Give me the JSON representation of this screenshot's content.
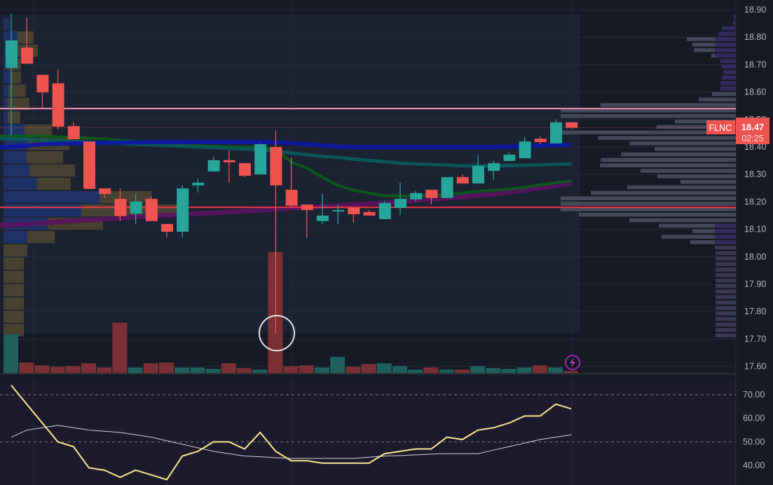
{
  "chart_data": {
    "type": "candlestick",
    "symbol": "FLNC",
    "last_price": "18.47",
    "countdown": "02:25",
    "price_axis": {
      "ylim": [
        17.57,
        18.93
      ],
      "ticks": [
        "18.90",
        "18.80",
        "18.70",
        "18.60",
        "18.50",
        "18.40",
        "18.30",
        "18.20",
        "18.10",
        "18.00",
        "17.90",
        "17.80",
        "17.70",
        "17.60"
      ]
    },
    "rsi_axis": {
      "ylim": [
        35,
        78
      ],
      "ticks": [
        "70.00",
        "60.00",
        "50.00",
        "40.00"
      ],
      "bands": [
        70,
        50
      ]
    },
    "levels": [
      {
        "price": 18.54,
        "color": "#f48fb1"
      },
      {
        "price": 18.18,
        "color": "#f23645"
      }
    ],
    "colors": {
      "up": "#26a69a",
      "down": "#ef5350",
      "ma_blue": "#0d17a8",
      "ma_teal": "#0b5c5c",
      "ma_green": "#0b5e1a",
      "ma_purple": "#5a1460",
      "rsi": "#f7e98e",
      "rsi_ma": "#d1d4dc"
    },
    "candles": [
      [
        18.688,
        18.885,
        18.443,
        18.788
      ],
      [
        18.762,
        18.872,
        18.701,
        18.704
      ],
      [
        18.663,
        18.663,
        18.54,
        18.599
      ],
      [
        18.632,
        18.683,
        18.464,
        18.474
      ],
      [
        18.476,
        18.49,
        18.43,
        18.428
      ],
      [
        18.42,
        18.42,
        18.247,
        18.247
      ],
      [
        18.249,
        18.249,
        18.214,
        18.229
      ],
      [
        18.211,
        18.249,
        18.13,
        18.148
      ],
      [
        18.157,
        18.23,
        18.12,
        18.201
      ],
      [
        18.211,
        18.22,
        18.13,
        18.13
      ],
      [
        18.119,
        18.119,
        18.07,
        18.091
      ],
      [
        18.091,
        18.26,
        18.07,
        18.249
      ],
      [
        18.26,
        18.285,
        18.234,
        18.27
      ],
      [
        18.311,
        18.364,
        18.31,
        18.352
      ],
      [
        18.352,
        18.388,
        18.27,
        18.344
      ],
      [
        18.341,
        18.341,
        18.29,
        18.295
      ],
      [
        18.3,
        18.413,
        18.3,
        18.41
      ],
      [
        18.4,
        18.46,
        17.72,
        18.26
      ],
      [
        18.244,
        18.362,
        18.18,
        18.186
      ],
      [
        18.19,
        18.19,
        18.07,
        18.17
      ],
      [
        18.13,
        18.23,
        18.12,
        18.15
      ],
      [
        18.165,
        18.19,
        18.12,
        18.17
      ],
      [
        18.178,
        18.18,
        18.124,
        18.155
      ],
      [
        18.163,
        18.17,
        18.15,
        18.15
      ],
      [
        18.137,
        18.203,
        18.137,
        18.196
      ],
      [
        18.178,
        18.27,
        18.152,
        18.211
      ],
      [
        18.209,
        18.24,
        18.2,
        18.232
      ],
      [
        18.244,
        18.244,
        18.19,
        18.214
      ],
      [
        18.214,
        18.29,
        18.214,
        18.29
      ],
      [
        18.29,
        18.3,
        18.267,
        18.267
      ],
      [
        18.267,
        18.37,
        18.267,
        18.331
      ],
      [
        18.313,
        18.35,
        18.28,
        18.341
      ],
      [
        18.349,
        18.38,
        18.349,
        18.372
      ],
      [
        18.359,
        18.436,
        18.359,
        18.42
      ],
      [
        18.43,
        18.44,
        18.41,
        18.418
      ],
      [
        18.413,
        18.5,
        18.413,
        18.49
      ],
      [
        18.49,
        18.49,
        18.467,
        18.47
      ]
    ],
    "volume": [
      55,
      15,
      11,
      9,
      10,
      14,
      8,
      72,
      8,
      14,
      15,
      8,
      8,
      6,
      14,
      7,
      5,
      173,
      10,
      11,
      8,
      23,
      9,
      13,
      14,
      10,
      5,
      8,
      5,
      5,
      10,
      7,
      6,
      8,
      11,
      8,
      3
    ],
    "ma_blue": [
      18.4,
      18.405,
      18.41,
      18.412,
      18.413,
      18.414,
      18.415,
      18.416,
      18.417,
      18.418,
      18.418,
      18.418,
      18.418,
      18.418,
      18.418,
      18.418,
      18.418,
      18.417,
      18.414,
      18.41,
      18.405,
      18.402,
      18.4,
      18.4,
      18.4,
      18.4,
      18.4,
      18.4,
      18.4,
      18.4,
      18.4,
      18.4,
      18.401,
      18.403,
      18.405,
      18.407,
      18.408
    ],
    "ma_teal": [
      18.43,
      18.428,
      18.425,
      18.423,
      18.42,
      18.418,
      18.415,
      18.413,
      18.41,
      18.408,
      18.405,
      18.403,
      18.4,
      18.398,
      18.395,
      18.393,
      18.39,
      18.385,
      18.378,
      18.372,
      18.366,
      18.362,
      18.356,
      18.351,
      18.346,
      18.341,
      18.338,
      18.336,
      18.334,
      18.331,
      18.331,
      18.331,
      18.332,
      18.333,
      18.335,
      18.337,
      18.338
    ],
    "ma_green": [
      18.44,
      18.44,
      18.44,
      18.437,
      18.435,
      18.432,
      18.43,
      18.425,
      18.42,
      18.416,
      18.412,
      18.408,
      18.405,
      18.403,
      18.401,
      18.4,
      18.4,
      18.39,
      18.345,
      18.323,
      18.29,
      18.26,
      18.243,
      18.232,
      18.222,
      18.221,
      18.221,
      18.222,
      18.226,
      18.232,
      18.238,
      18.242,
      18.247,
      18.253,
      18.262,
      18.27,
      18.277
    ],
    "ma_purple": [
      18.115,
      18.119,
      18.123,
      18.127,
      18.131,
      18.134,
      18.137,
      18.141,
      18.145,
      18.148,
      18.151,
      18.154,
      18.157,
      18.16,
      18.163,
      18.166,
      18.17,
      18.173,
      18.176,
      18.18,
      18.183,
      18.186,
      18.19,
      18.193,
      18.196,
      18.2,
      18.205,
      18.209,
      18.214,
      18.218,
      18.223,
      18.227,
      18.235,
      18.243,
      18.251,
      18.259,
      18.267
    ],
    "rsi": [
      74,
      66,
      58,
      50,
      48,
      39,
      38,
      35,
      38,
      36,
      34,
      44,
      46,
      50,
      50,
      47,
      54,
      46,
      42,
      42,
      41,
      41,
      41,
      41,
      45,
      46,
      47,
      47,
      52,
      51,
      55,
      56,
      58,
      61,
      61,
      66,
      64
    ],
    "rsi_ma": [
      52,
      55,
      56,
      57,
      56,
      55,
      54.5,
      54,
      53,
      52,
      50.5,
      49,
      47.5,
      46,
      45,
      44,
      43.7,
      43.3,
      43,
      43,
      43,
      43,
      43,
      43.5,
      44,
      44.2,
      44.5,
      44.8,
      45,
      45,
      45,
      46.5,
      48,
      49.5,
      51,
      52,
      53
    ],
    "volume_profile_right": {
      "price_top": 18.88,
      "step": 0.02,
      "values": [
        3,
        4,
        20,
        25,
        70,
        62,
        60,
        35,
        22,
        20,
        18,
        20,
        22,
        22,
        34,
        53,
        193,
        250,
        250,
        87,
        113,
        250,
        197,
        152,
        116,
        164,
        193,
        194,
        136,
        112,
        79,
        155,
        207,
        250,
        250,
        250,
        224,
        152,
        110,
        62,
        106,
        65,
        30,
        29,
        29,
        29,
        29,
        29,
        29,
        29,
        29,
        29,
        29,
        29,
        29,
        29,
        29,
        29,
        29
      ]
    },
    "volume_profile_left": {
      "price_top": 18.87,
      "step": 0.0485,
      "up": [
        8,
        20,
        5,
        5,
        10,
        7,
        6,
        6,
        30,
        35,
        33,
        37,
        48,
        137,
        111,
        63,
        34,
        0,
        0,
        0,
        0,
        0,
        0,
        0
      ],
      "down": [
        0,
        23,
        44,
        20,
        15,
        25,
        31,
        18,
        39,
        59,
        52,
        65,
        48,
        74,
        138,
        79,
        39,
        34,
        29,
        29,
        29,
        29,
        29,
        29
      ]
    }
  }
}
